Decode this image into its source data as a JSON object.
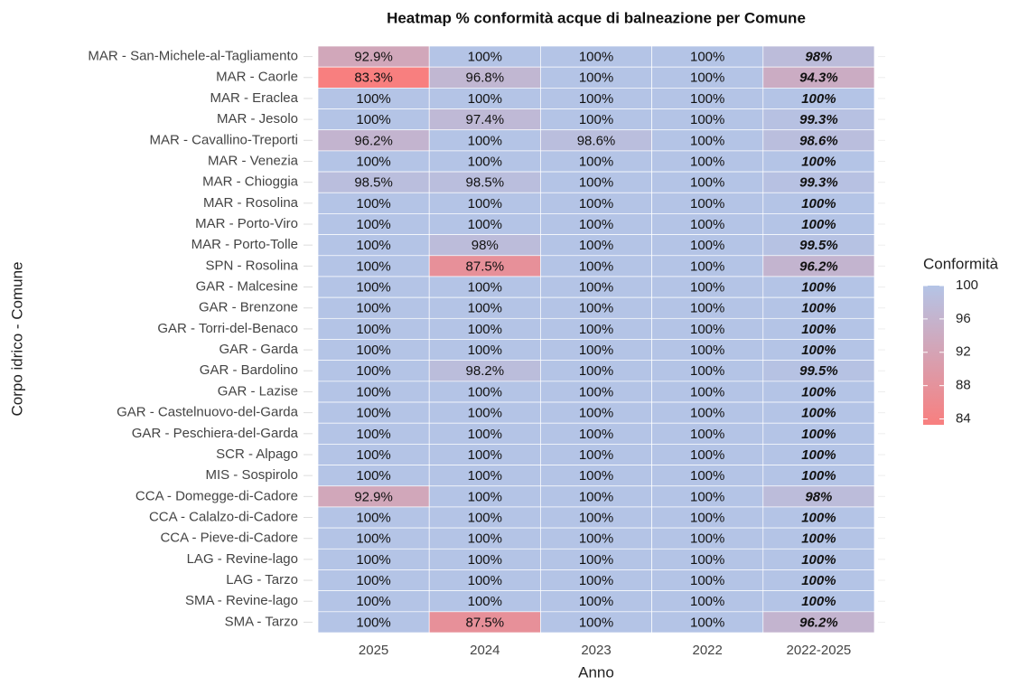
{
  "chart_data": {
    "type": "heatmap",
    "title": "Heatmap % conformità acque di balneazione per Comune",
    "x_label": "Anno",
    "y_label": "Corpo idrico - Comune",
    "categories": [
      "2025",
      "2024",
      "2023",
      "2022",
      "2022-2025"
    ],
    "rows": [
      "MAR - San-Michele-al-Tagliamento",
      "MAR - Caorle",
      "MAR - Eraclea",
      "MAR - Jesolo",
      "MAR - Cavallino-Treporti",
      "MAR - Venezia",
      "MAR - Chioggia",
      "MAR - Rosolina",
      "MAR - Porto-Viro",
      "MAR - Porto-Tolle",
      "SPN - Rosolina",
      "GAR - Malcesine",
      "GAR - Brenzone",
      "GAR - Torri-del-Benaco",
      "GAR - Garda",
      "GAR - Bardolino",
      "GAR - Lazise",
      "GAR - Castelnuovo-del-Garda",
      "GAR - Peschiera-del-Garda",
      "SCR - Alpago",
      "MIS - Sospirolo",
      "CCA - Domegge-di-Cadore",
      "CCA - Calalzo-di-Cadore",
      "CCA - Pieve-di-Cadore",
      "LAG - Revine-lago",
      "LAG - Tarzo",
      "SMA - Revine-lago",
      "SMA - Tarzo"
    ],
    "values": [
      [
        92.9,
        100,
        100,
        100,
        98
      ],
      [
        83.3,
        96.8,
        100,
        100,
        94.3
      ],
      [
        100,
        100,
        100,
        100,
        100
      ],
      [
        100,
        97.4,
        100,
        100,
        99.3
      ],
      [
        96.2,
        100,
        98.6,
        100,
        98.6
      ],
      [
        100,
        100,
        100,
        100,
        100
      ],
      [
        98.5,
        98.5,
        100,
        100,
        99.3
      ],
      [
        100,
        100,
        100,
        100,
        100
      ],
      [
        100,
        100,
        100,
        100,
        100
      ],
      [
        100,
        98,
        100,
        100,
        99.5
      ],
      [
        100,
        87.5,
        100,
        100,
        96.2
      ],
      [
        100,
        100,
        100,
        100,
        100
      ],
      [
        100,
        100,
        100,
        100,
        100
      ],
      [
        100,
        100,
        100,
        100,
        100
      ],
      [
        100,
        100,
        100,
        100,
        100
      ],
      [
        100,
        98.2,
        100,
        100,
        99.5
      ],
      [
        100,
        100,
        100,
        100,
        100
      ],
      [
        100,
        100,
        100,
        100,
        100
      ],
      [
        100,
        100,
        100,
        100,
        100
      ],
      [
        100,
        100,
        100,
        100,
        100
      ],
      [
        100,
        100,
        100,
        100,
        100
      ],
      [
        92.9,
        100,
        100,
        100,
        98
      ],
      [
        100,
        100,
        100,
        100,
        100
      ],
      [
        100,
        100,
        100,
        100,
        100
      ],
      [
        100,
        100,
        100,
        100,
        100
      ],
      [
        100,
        100,
        100,
        100,
        100
      ],
      [
        100,
        100,
        100,
        100,
        100
      ],
      [
        100,
        87.5,
        100,
        100,
        96.2
      ]
    ],
    "value_labels": [
      [
        "92.9%",
        "100%",
        "100%",
        "100%",
        "98%"
      ],
      [
        "83.3%",
        "96.8%",
        "100%",
        "100%",
        "94.3%"
      ],
      [
        "100%",
        "100%",
        "100%",
        "100%",
        "100%"
      ],
      [
        "100%",
        "97.4%",
        "100%",
        "100%",
        "99.3%"
      ],
      [
        "96.2%",
        "100%",
        "98.6%",
        "100%",
        "98.6%"
      ],
      [
        "100%",
        "100%",
        "100%",
        "100%",
        "100%"
      ],
      [
        "98.5%",
        "98.5%",
        "100%",
        "100%",
        "99.3%"
      ],
      [
        "100%",
        "100%",
        "100%",
        "100%",
        "100%"
      ],
      [
        "100%",
        "100%",
        "100%",
        "100%",
        "100%"
      ],
      [
        "100%",
        "98%",
        "100%",
        "100%",
        "99.5%"
      ],
      [
        "100%",
        "87.5%",
        "100%",
        "100%",
        "96.2%"
      ],
      [
        "100%",
        "100%",
        "100%",
        "100%",
        "100%"
      ],
      [
        "100%",
        "100%",
        "100%",
        "100%",
        "100%"
      ],
      [
        "100%",
        "100%",
        "100%",
        "100%",
        "100%"
      ],
      [
        "100%",
        "100%",
        "100%",
        "100%",
        "100%"
      ],
      [
        "100%",
        "98.2%",
        "100%",
        "100%",
        "99.5%"
      ],
      [
        "100%",
        "100%",
        "100%",
        "100%",
        "100%"
      ],
      [
        "100%",
        "100%",
        "100%",
        "100%",
        "100%"
      ],
      [
        "100%",
        "100%",
        "100%",
        "100%",
        "100%"
      ],
      [
        "100%",
        "100%",
        "100%",
        "100%",
        "100%"
      ],
      [
        "100%",
        "100%",
        "100%",
        "100%",
        "100%"
      ],
      [
        "92.9%",
        "100%",
        "100%",
        "100%",
        "98%"
      ],
      [
        "100%",
        "100%",
        "100%",
        "100%",
        "100%"
      ],
      [
        "100%",
        "100%",
        "100%",
        "100%",
        "100%"
      ],
      [
        "100%",
        "100%",
        "100%",
        "100%",
        "100%"
      ],
      [
        "100%",
        "100%",
        "100%",
        "100%",
        "100%"
      ],
      [
        "100%",
        "100%",
        "100%",
        "100%",
        "100%"
      ],
      [
        "100%",
        "87.5%",
        "100%",
        "100%",
        "96.2%"
      ]
    ],
    "legend_title": "Conformità",
    "zlim": [
      83.3,
      100
    ],
    "zticks": [
      84,
      88,
      92,
      96,
      100
    ],
    "low_color": "#f87f7f",
    "high_color": "#b4c4e6"
  }
}
